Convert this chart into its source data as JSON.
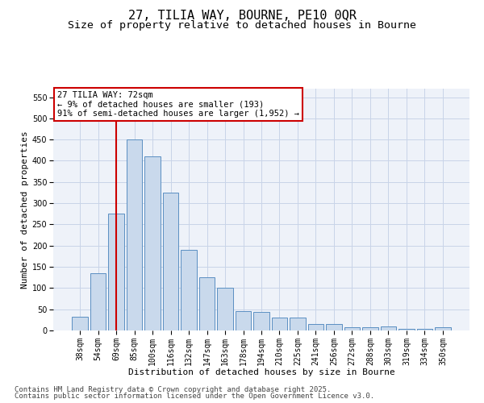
{
  "title1": "27, TILIA WAY, BOURNE, PE10 0QR",
  "title2": "Size of property relative to detached houses in Bourne",
  "xlabel": "Distribution of detached houses by size in Bourne",
  "ylabel": "Number of detached properties",
  "categories": [
    "38sqm",
    "54sqm",
    "69sqm",
    "85sqm",
    "100sqm",
    "116sqm",
    "132sqm",
    "147sqm",
    "163sqm",
    "178sqm",
    "194sqm",
    "210sqm",
    "225sqm",
    "241sqm",
    "256sqm",
    "272sqm",
    "288sqm",
    "303sqm",
    "319sqm",
    "334sqm",
    "350sqm"
  ],
  "values": [
    33,
    135,
    275,
    450,
    410,
    325,
    190,
    125,
    100,
    45,
    43,
    30,
    30,
    16,
    16,
    7,
    8,
    9,
    3,
    4,
    7
  ],
  "bar_color": "#c9d9ec",
  "bar_edge_color": "#5a8fc2",
  "vline_x": 2.0,
  "vline_color": "#cc0000",
  "annotation_line1": "27 TILIA WAY: 72sqm",
  "annotation_line2": "← 9% of detached houses are smaller (193)",
  "annotation_line3": "91% of semi-detached houses are larger (1,952) →",
  "annotation_box_color": "#cc0000",
  "ylim": [
    0,
    570
  ],
  "yticks": [
    0,
    50,
    100,
    150,
    200,
    250,
    300,
    350,
    400,
    450,
    500,
    550
  ],
  "grid_color": "#c8d4e8",
  "bg_color": "#eef2f9",
  "footer1": "Contains HM Land Registry data © Crown copyright and database right 2025.",
  "footer2": "Contains public sector information licensed under the Open Government Licence v3.0.",
  "title_fontsize": 11,
  "subtitle_fontsize": 9.5,
  "axis_label_fontsize": 8,
  "tick_fontsize": 7,
  "annotation_fontsize": 7.5,
  "footer_fontsize": 6.5
}
